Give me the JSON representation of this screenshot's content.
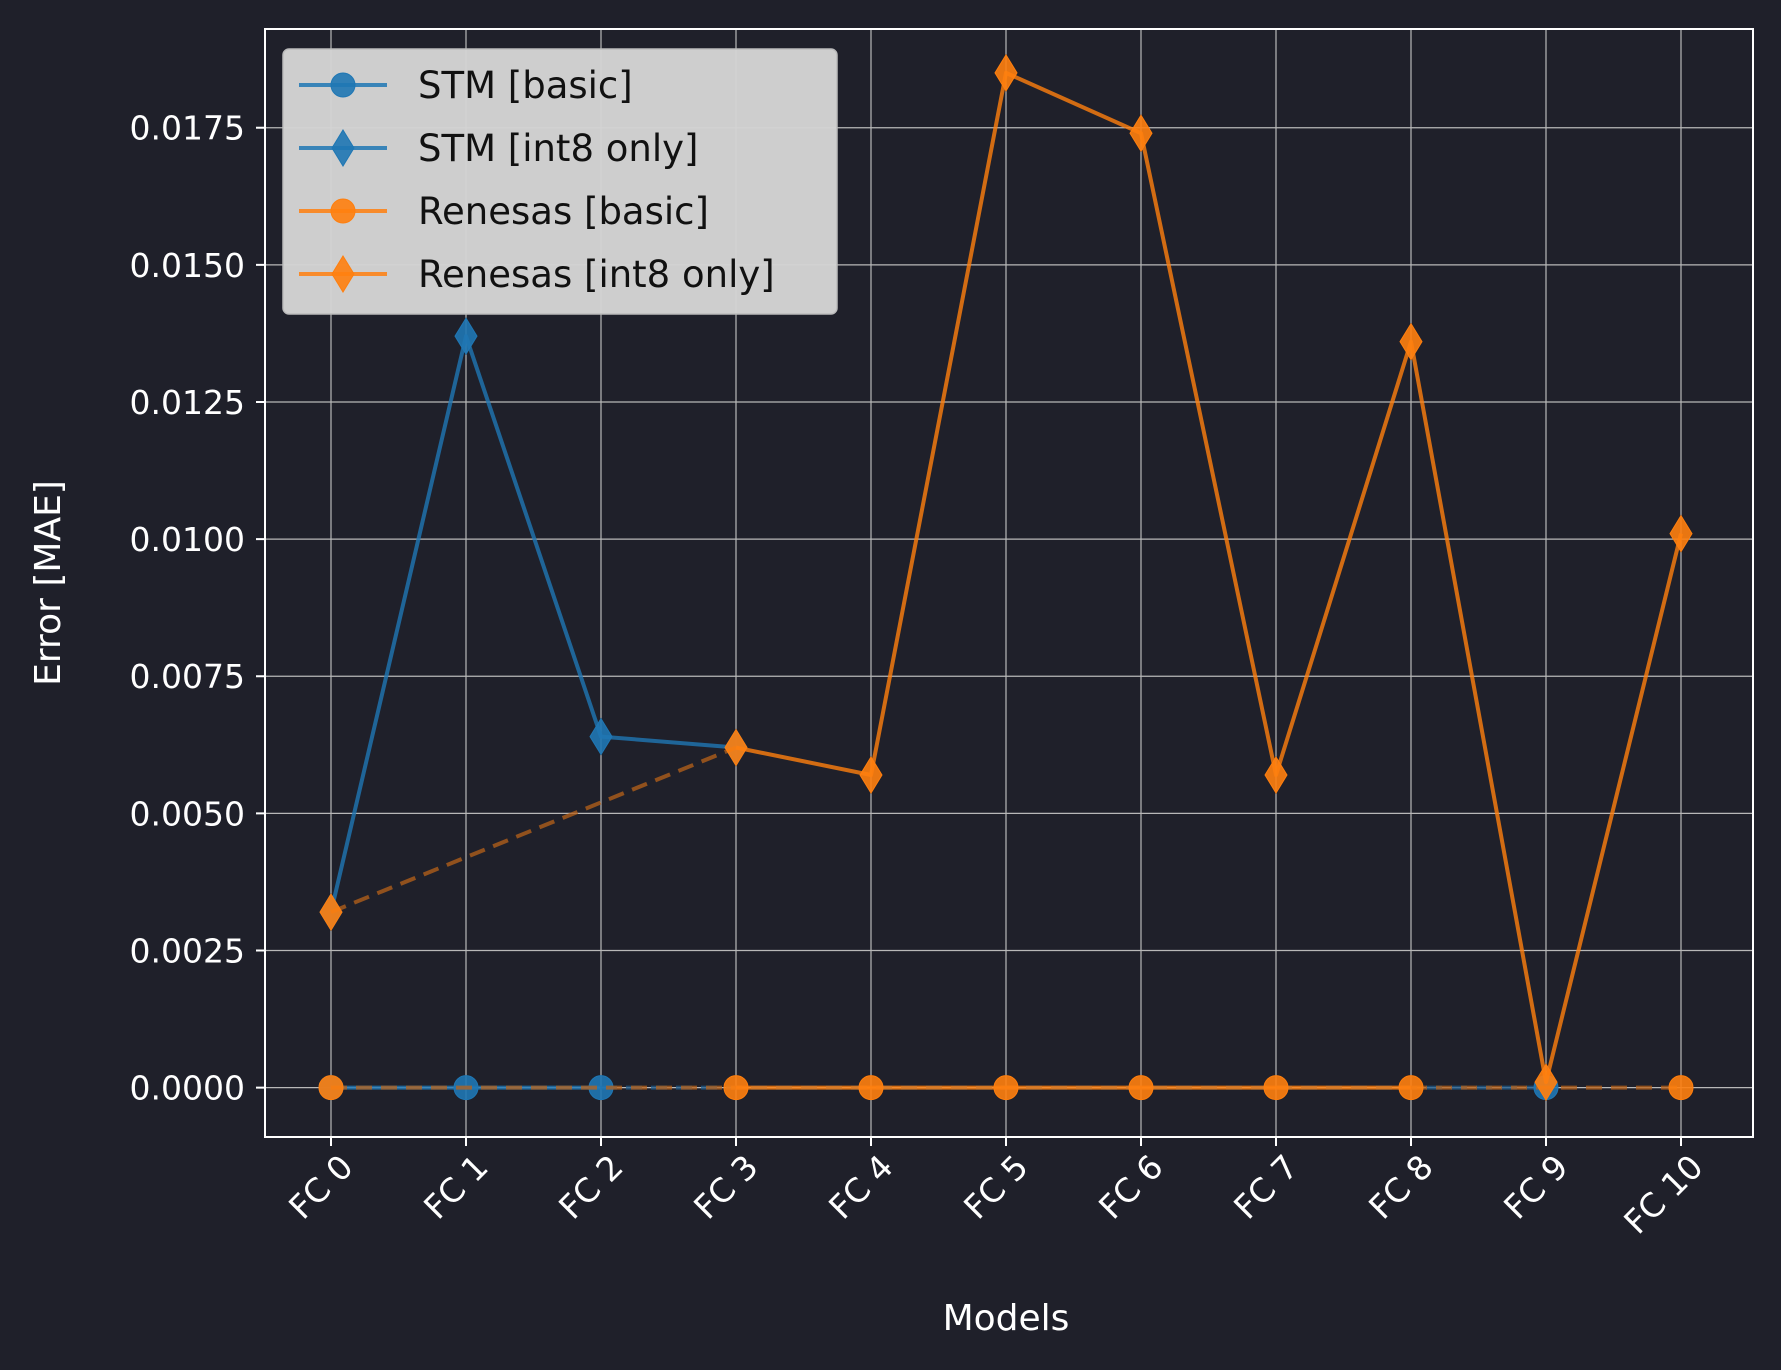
{
  "chart_data": {
    "type": "line",
    "title": "",
    "xlabel": "Models",
    "ylabel": "Error [MAE]",
    "categories": [
      "FC 0",
      "FC 1",
      "FC 2",
      "FC 3",
      "FC 4",
      "FC 5",
      "FC 6",
      "FC 7",
      "FC 8",
      "FC 9",
      "FC 10"
    ],
    "ylim": [
      -0.0009,
      0.0193
    ],
    "yticks": [
      "0.0000",
      "0.0025",
      "0.0050",
      "0.0075",
      "0.0100",
      "0.0125",
      "0.0150",
      "0.0175"
    ],
    "ytick_values": [
      0,
      0.0025,
      0.005,
      0.0075,
      0.01,
      0.0125,
      0.015,
      0.0175
    ],
    "grid": true,
    "legend_position": "top-left",
    "series": [
      {
        "name": "STM [basic]",
        "marker": "circle",
        "color": "#1f77b4",
        "values": [
          0,
          0,
          0,
          null,
          null,
          null,
          null,
          null,
          null,
          0,
          null
        ]
      },
      {
        "name": "STM [int8 only]",
        "marker": "diamond",
        "color": "#1f77b4",
        "values": [
          0.0032,
          0.0137,
          0.0064,
          0.0062,
          null,
          null,
          null,
          null,
          null,
          null,
          null
        ]
      },
      {
        "name": "Renesas [basic]",
        "marker": "circle",
        "color": "#ff7f0e",
        "values": [
          0,
          null,
          null,
          0,
          0,
          0,
          0,
          0,
          0,
          null,
          0
        ]
      },
      {
        "name": "Renesas [int8 only]",
        "marker": "diamond",
        "color": "#ff7f0e",
        "values": [
          0.0032,
          null,
          null,
          0.0062,
          0.0057,
          0.0185,
          0.0174,
          0.0057,
          0.0136,
          0.0001,
          0.0101
        ]
      }
    ]
  }
}
